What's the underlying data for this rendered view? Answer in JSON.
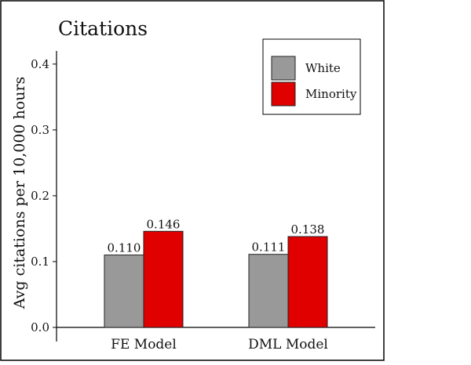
{
  "chart_data": {
    "type": "bar",
    "title": "Citations",
    "xlabel": "",
    "ylabel": "Avg citations per 10,000 hours",
    "categories": [
      "FE Model",
      "DML Model"
    ],
    "series": [
      {
        "name": "White",
        "values": [
          0.11,
          0.111
        ],
        "labels": [
          "0.110",
          "0.111"
        ],
        "color": "#999999"
      },
      {
        "name": "Minority",
        "values": [
          0.146,
          0.138
        ],
        "labels": [
          "0.146",
          "0.138"
        ],
        "color": "#e00000"
      }
    ],
    "ylim": [
      0,
      0.42
    ],
    "yticks": [
      0.0,
      0.1,
      0.2,
      0.3,
      0.4
    ],
    "ytick_labels": [
      "0.0",
      "0.1",
      "0.2",
      "0.3",
      "0.4"
    ],
    "grid": false,
    "legend_position": "top-right"
  }
}
